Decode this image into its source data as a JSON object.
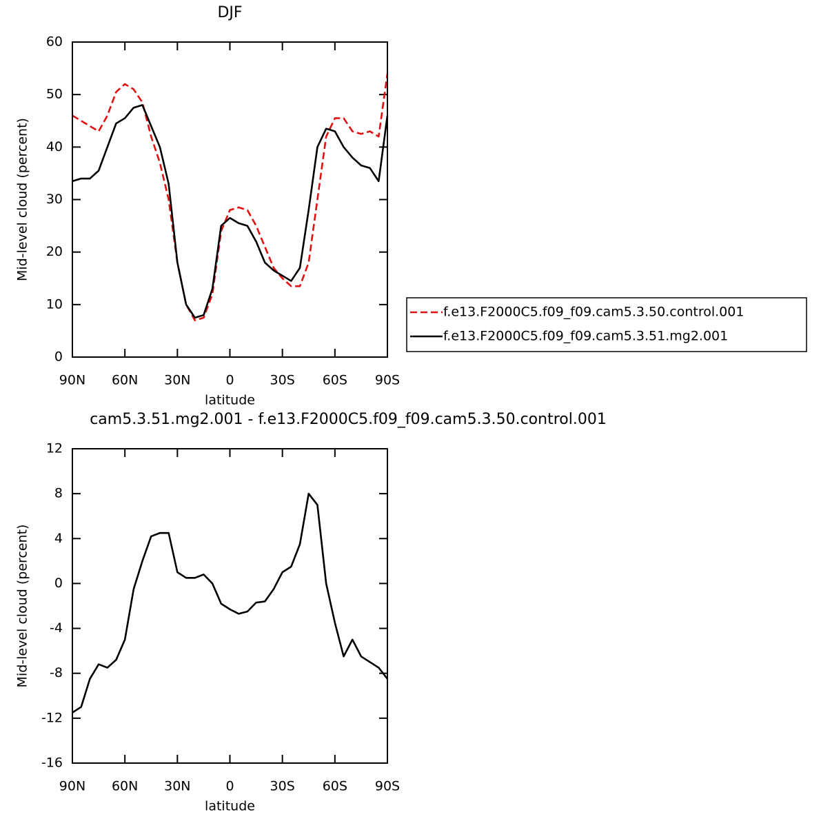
{
  "chart_data": [
    {
      "type": "line",
      "title": "DJF",
      "xlabel": "latitude",
      "ylabel": "Mid-level cloud (percent)",
      "x": [
        90,
        85,
        80,
        75,
        70,
        65,
        60,
        55,
        50,
        45,
        40,
        35,
        30,
        25,
        20,
        15,
        10,
        5,
        0,
        -5,
        -10,
        -15,
        -20,
        -25,
        -30,
        -35,
        -40,
        -45,
        -50,
        -55,
        -60,
        -65,
        -70,
        -75,
        -80,
        -85,
        -90
      ],
      "xlim": [
        90,
        -90
      ],
      "xticks": [
        {
          "value": 90,
          "label": "90N"
        },
        {
          "value": 60,
          "label": "60N"
        },
        {
          "value": 30,
          "label": "30N"
        },
        0,
        {
          "value": -30,
          "label": "30S"
        },
        {
          "value": -60,
          "label": "60S"
        },
        {
          "value": -90,
          "label": "90S"
        }
      ],
      "ylim": [
        0,
        60
      ],
      "yticks": [
        0,
        10,
        20,
        30,
        40,
        50,
        60
      ],
      "legend": "right",
      "series": [
        {
          "name": "f.e13.F2000C5.f09_f09.cam5.3.50.control.001",
          "color": "#e01010",
          "style": "dashed",
          "values": [
            46,
            45,
            44,
            43,
            46,
            50.5,
            52,
            51,
            48.5,
            42,
            37,
            30,
            18,
            10,
            7,
            7.5,
            12,
            24,
            28,
            28.5,
            28,
            25,
            21,
            17,
            15,
            13.5,
            13.5,
            18,
            30,
            42,
            45.5,
            45.5,
            43,
            42.5,
            43,
            42,
            54
          ]
        },
        {
          "name": "f.e13.F2000C5.f09_f09.cam5.3.51.mg2.001",
          "color": "#000000",
          "style": "solid",
          "values": [
            33.5,
            34,
            34,
            35.5,
            40,
            44.5,
            45.5,
            47.5,
            48,
            44,
            40,
            33,
            18,
            10,
            7.5,
            8,
            13,
            25,
            26.5,
            25.5,
            25,
            22,
            18,
            16.5,
            15.5,
            14.5,
            17,
            28,
            40,
            43.5,
            43,
            40,
            38,
            36.5,
            36,
            33.5,
            46
          ]
        }
      ]
    },
    {
      "type": "line",
      "title": "cam5.3.51.mg2.001 - f.e13.F2000C5.f09_f09.cam5.3.50.control.001",
      "xlabel": "latitude",
      "ylabel": "Mid-level cloud (percent)",
      "x": [
        90,
        85,
        80,
        75,
        70,
        65,
        60,
        55,
        50,
        45,
        40,
        35,
        30,
        25,
        20,
        15,
        10,
        5,
        0,
        -5,
        -10,
        -15,
        -20,
        -25,
        -30,
        -35,
        -40,
        -45,
        -50,
        -55,
        -60,
        -65,
        -70,
        -75,
        -80,
        -85,
        -90
      ],
      "xlim": [
        90,
        -90
      ],
      "xticks": [
        {
          "value": 90,
          "label": "90N"
        },
        {
          "value": 60,
          "label": "60N"
        },
        {
          "value": 30,
          "label": "30N"
        },
        0,
        {
          "value": -30,
          "label": "30S"
        },
        {
          "value": -60,
          "label": "60S"
        },
        {
          "value": -90,
          "label": "90S"
        }
      ],
      "ylim": [
        -16,
        12
      ],
      "yticks": [
        -16,
        -12,
        -8,
        -4,
        0,
        4,
        8,
        12
      ],
      "series": [
        {
          "color": "#000000",
          "style": "solid",
          "values": [
            -11.5,
            -11,
            -8.5,
            -7.2,
            -7.5,
            -6.8,
            -5,
            -0.5,
            2,
            4.2,
            4.5,
            4.5,
            1,
            0.5,
            0.5,
            0.8,
            0,
            -1.8,
            -2.3,
            -2.7,
            -2.5,
            -1.7,
            -1.6,
            -0.5,
            1,
            1.5,
            3.5,
            8,
            7,
            0,
            -3.5,
            -6.5,
            -5,
            -6.5,
            -7,
            -7.5,
            -8.5
          ]
        }
      ]
    }
  ]
}
